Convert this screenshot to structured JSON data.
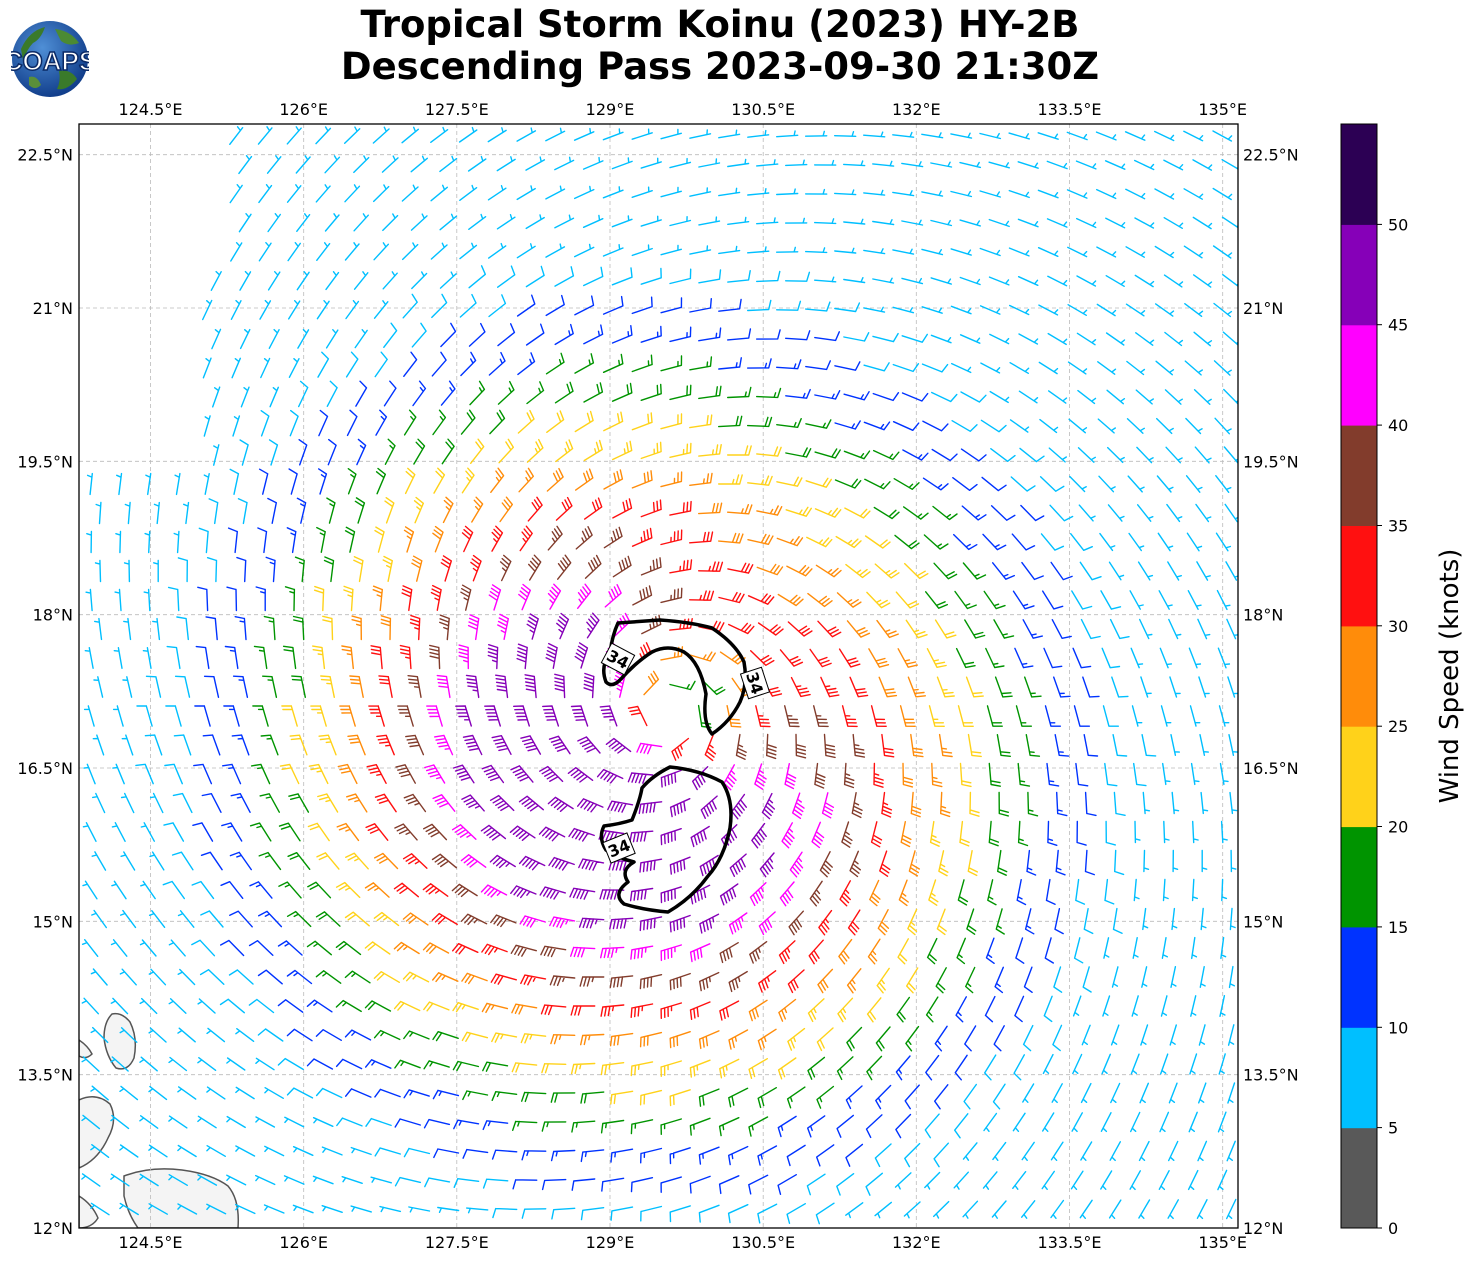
{
  "title": {
    "line1": "Tropical Storm Koinu (2023) HY-2B",
    "line2": "Descending Pass 2023-09-30 21:30Z"
  },
  "logo": {
    "text": "COAPS"
  },
  "map": {
    "lon_range": [
      123.8,
      135.15
    ],
    "lat_range": [
      12.0,
      22.8
    ],
    "lon_ticks": [
      {
        "value": 124.5,
        "label": "124.5°E"
      },
      {
        "value": 126.0,
        "label": "126°E"
      },
      {
        "value": 127.5,
        "label": "127.5°E"
      },
      {
        "value": 129.0,
        "label": "129°E"
      },
      {
        "value": 130.5,
        "label": "130.5°E"
      },
      {
        "value": 132.0,
        "label": "132°E"
      },
      {
        "value": 133.5,
        "label": "133.5°E"
      },
      {
        "value": 135.0,
        "label": "135°E"
      }
    ],
    "lat_ticks": [
      {
        "value": 22.5,
        "label": "22.5°N"
      },
      {
        "value": 21.0,
        "label": "21°N"
      },
      {
        "value": 19.5,
        "label": "19.5°N"
      },
      {
        "value": 18.0,
        "label": "18°N"
      },
      {
        "value": 16.5,
        "label": "16.5°N"
      },
      {
        "value": 15.0,
        "label": "15°N"
      },
      {
        "value": 13.5,
        "label": "13.5°N"
      },
      {
        "value": 12.0,
        "label": "12°N"
      }
    ],
    "gridlines": true,
    "storm_center": {
      "lon": 129.55,
      "lat": 17.05
    },
    "contour_label": "34"
  },
  "colorbar": {
    "label": "Wind Speed (knots)",
    "bins": [
      {
        "from": 0,
        "to": 5,
        "color": "#595959"
      },
      {
        "from": 5,
        "to": 10,
        "color": "#00bfff"
      },
      {
        "from": 10,
        "to": 15,
        "color": "#0033ff"
      },
      {
        "from": 15,
        "to": 20,
        "color": "#009400"
      },
      {
        "from": 20,
        "to": 25,
        "color": "#ffd21a"
      },
      {
        "from": 25,
        "to": 30,
        "color": "#ff8c0a"
      },
      {
        "from": 30,
        "to": 35,
        "color": "#ff1010"
      },
      {
        "from": 35,
        "to": 40,
        "color": "#823c2c"
      },
      {
        "from": 40,
        "to": 45,
        "color": "#ff00ff"
      },
      {
        "from": 45,
        "to": 50,
        "color": "#8600b8"
      },
      {
        "from": 50,
        "to": 55,
        "color": "#2c0054"
      }
    ],
    "ticks": [
      "0",
      "5",
      "10",
      "15",
      "20",
      "25",
      "30",
      "35",
      "40",
      "45",
      "50"
    ]
  }
}
